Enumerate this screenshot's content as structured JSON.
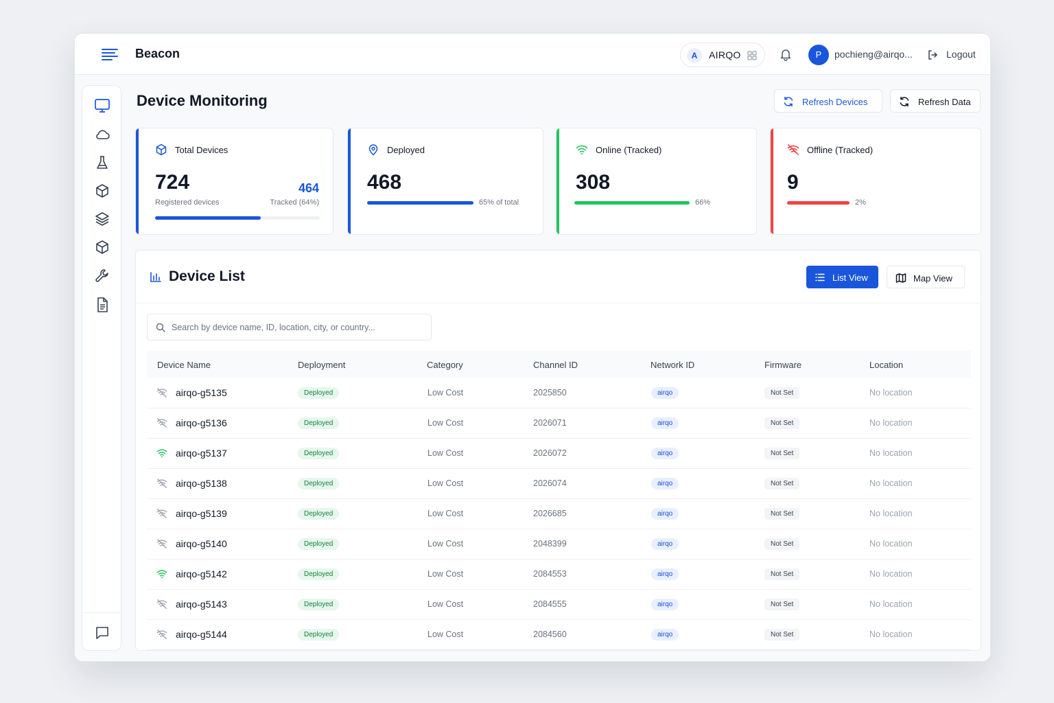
{
  "app": {
    "brand": "Beacon",
    "org_initial": "A",
    "org_name": "AIRQO",
    "user_initial": "P",
    "user_email": "pochieng@airqo...",
    "logout_label": "Logout"
  },
  "sidebar": {
    "items": [
      {
        "icon": "monitor-icon",
        "active": true
      },
      {
        "icon": "cloud-icon"
      },
      {
        "icon": "flask-icon"
      },
      {
        "icon": "box-icon"
      },
      {
        "icon": "layers-icon"
      },
      {
        "icon": "package-icon"
      },
      {
        "icon": "wrench-icon"
      },
      {
        "icon": "document-icon"
      }
    ],
    "bottom_icon": "chat-icon"
  },
  "page": {
    "title": "Device Monitoring",
    "refresh_devices_label": "Refresh Devices",
    "refresh_data_label": "Refresh Data"
  },
  "stats": {
    "total": {
      "label": "Total Devices",
      "value": "724",
      "sub_label": "Registered devices",
      "tracked_value": "464",
      "tracked_label": "Tracked (64%)",
      "progress": 0.64
    },
    "deployed": {
      "label": "Deployed",
      "value": "468",
      "pct_label": "65% of total",
      "progress": 1.0
    },
    "online": {
      "label": "Online (Tracked)",
      "value": "308",
      "pct_label": "66%",
      "progress": 1.0
    },
    "offline": {
      "label": "Offline (Tracked)",
      "value": "9",
      "pct_label": "2%",
      "progress": 1.0
    }
  },
  "colors": {
    "accent_blue": "#1a56db",
    "online_green": "#22c55e",
    "offline_red": "#ef4444"
  },
  "device_list": {
    "title": "Device List",
    "list_view_label": "List View",
    "map_view_label": "Map View",
    "search_placeholder": "Search by device name, ID, location, city, or country...",
    "columns": [
      "Device Name",
      "Deployment",
      "Category",
      "Channel ID",
      "Network ID",
      "Firmware",
      "Location"
    ],
    "rows": [
      {
        "name": "airqo-g5135",
        "online": false,
        "deployment": "Deployed",
        "category": "Low Cost",
        "channel_id": "2025850",
        "network": "airqo",
        "firmware": "Not Set",
        "location": "No location"
      },
      {
        "name": "airqo-g5136",
        "online": false,
        "deployment": "Deployed",
        "category": "Low Cost",
        "channel_id": "2026071",
        "network": "airqo",
        "firmware": "Not Set",
        "location": "No location"
      },
      {
        "name": "airqo-g5137",
        "online": true,
        "deployment": "Deployed",
        "category": "Low Cost",
        "channel_id": "2026072",
        "network": "airqo",
        "firmware": "Not Set",
        "location": "No location"
      },
      {
        "name": "airqo-g5138",
        "online": false,
        "deployment": "Deployed",
        "category": "Low Cost",
        "channel_id": "2026074",
        "network": "airqo",
        "firmware": "Not Set",
        "location": "No location"
      },
      {
        "name": "airqo-g5139",
        "online": false,
        "deployment": "Deployed",
        "category": "Low Cost",
        "channel_id": "2026685",
        "network": "airqo",
        "firmware": "Not Set",
        "location": "No location"
      },
      {
        "name": "airqo-g5140",
        "online": false,
        "deployment": "Deployed",
        "category": "Low Cost",
        "channel_id": "2048399",
        "network": "airqo",
        "firmware": "Not Set",
        "location": "No location"
      },
      {
        "name": "airqo-g5142",
        "online": true,
        "deployment": "Deployed",
        "category": "Low Cost",
        "channel_id": "2084553",
        "network": "airqo",
        "firmware": "Not Set",
        "location": "No location"
      },
      {
        "name": "airqo-g5143",
        "online": false,
        "deployment": "Deployed",
        "category": "Low Cost",
        "channel_id": "2084555",
        "network": "airqo",
        "firmware": "Not Set",
        "location": "No location"
      },
      {
        "name": "airqo-g5144",
        "online": false,
        "deployment": "Deployed",
        "category": "Low Cost",
        "channel_id": "2084560",
        "network": "airqo",
        "firmware": "Not Set",
        "location": "No location"
      }
    ]
  }
}
